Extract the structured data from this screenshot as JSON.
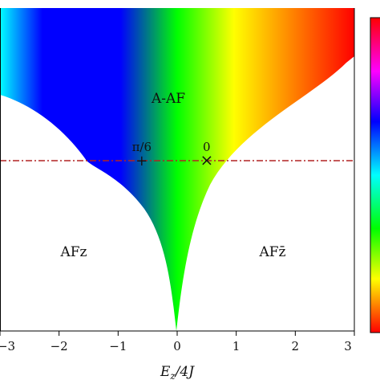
{
  "chart_data": {
    "type": "heatmap",
    "xlabel": "E_z/4J",
    "xlim": [
      -3,
      3
    ],
    "x_ticks": [
      "−3",
      "−2",
      "−1",
      "0",
      "1",
      "2",
      "3"
    ],
    "x_tick_values": [
      -3,
      -2,
      -1,
      0,
      1,
      2,
      3
    ],
    "colormap": "hsv",
    "colors": {
      "red": "#ff0000",
      "yellow": "#ffff00",
      "green": "#00ff00",
      "cyan": "#00ffff",
      "blue": "#0000ff",
      "magenta": "#ff00ff",
      "cut_line": "#b22222"
    },
    "region_labels": [
      {
        "id": "aaf",
        "text": "A-AF"
      },
      {
        "id": "afz",
        "text": "AFz"
      },
      {
        "id": "afzbar",
        "text": "AFz̄"
      }
    ],
    "cut_line_style": "dash-dot",
    "markers": [
      {
        "id": "pi6",
        "x": -0.6,
        "symbol": "+",
        "label": "π/6"
      },
      {
        "id": "zero",
        "x": 0.5,
        "symbol": "×",
        "label": "0"
      }
    ],
    "colorbar": {
      "position": "right",
      "colormap": "hsv"
    }
  }
}
